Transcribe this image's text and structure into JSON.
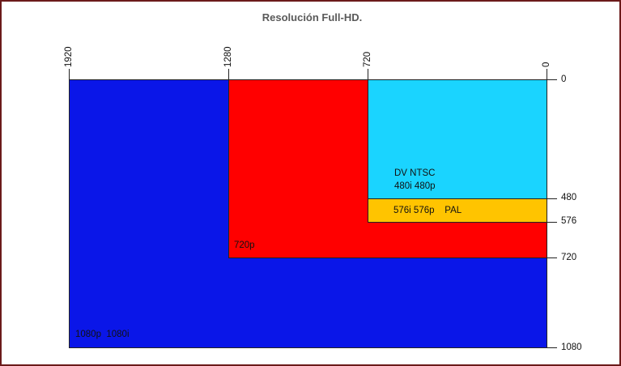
{
  "title": "Resolución Full-HD.",
  "x_ticks": [
    "1920",
    "1280",
    "720",
    "0"
  ],
  "y_ticks": [
    "0",
    "480",
    "576",
    "720",
    "1080"
  ],
  "regions": {
    "r1080": {
      "label": "1080p  1080i",
      "color": "#0a16e8"
    },
    "r720": {
      "label": "720p",
      "color": "#ff0000"
    },
    "r576": {
      "label": "576i 576p    PAL",
      "color": "#ffc400"
    },
    "r480": {
      "label_line1": "DV NTSC",
      "label_line2": "480i 480p",
      "color": "#1ad4ff"
    }
  }
}
